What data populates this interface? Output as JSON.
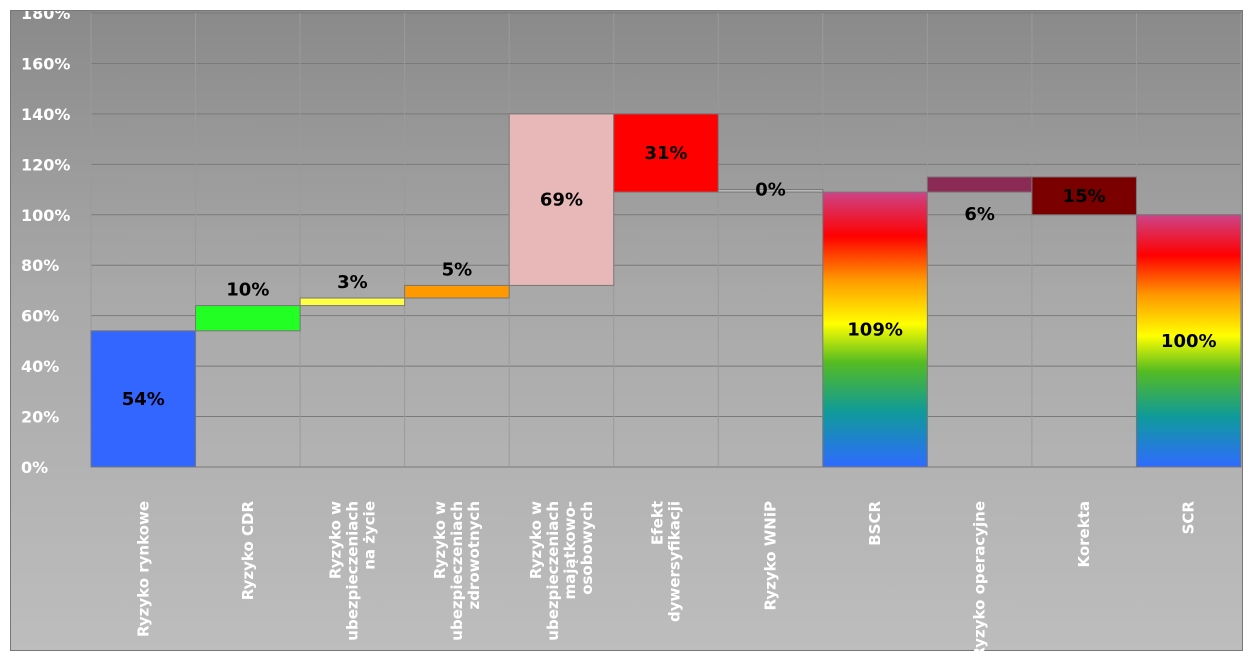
{
  "chart_data": {
    "type": "bar",
    "subtype": "waterfall",
    "title": "",
    "xlabel": "",
    "ylabel": "",
    "ylim": [
      0,
      180
    ],
    "y_ticks": [
      "0%",
      "20%",
      "40%",
      "60%",
      "80%",
      "100%",
      "120%",
      "140%",
      "160%",
      "180%"
    ],
    "grid": true,
    "legend": "none",
    "categories": [
      [
        "Ryzyko rynkowe"
      ],
      [
        "Ryzyko CDR"
      ],
      [
        "Ryzyko w",
        "ubezpieczeniach",
        "na życie"
      ],
      [
        "Ryzyko w",
        "ubezpieczeniach",
        "zdrowotnych"
      ],
      [
        "Ryzyko w",
        "ubezpieczeniach",
        "majątkowo-",
        "osobowych"
      ],
      [
        "Efekt",
        "dywersyfikacji"
      ],
      [
        "Ryzyko WNiP"
      ],
      [
        "BSCR"
      ],
      [
        "Ryzyko operacyjne"
      ],
      [
        "Korekta"
      ],
      [
        "SCR"
      ]
    ],
    "bars": [
      {
        "start": 0,
        "end": 54,
        "label": "54%",
        "color": "#3366ff",
        "fill": "solid"
      },
      {
        "start": 54,
        "end": 64,
        "label": "10%",
        "color": "#22ff22",
        "fill": "solid"
      },
      {
        "start": 64,
        "end": 67,
        "label": "3%",
        "color": "#ffff44",
        "fill": "solid"
      },
      {
        "start": 67,
        "end": 72,
        "label": "5%",
        "color": "#ff9900",
        "fill": "solid"
      },
      {
        "start": 72,
        "end": 140,
        "label": "69%",
        "color": "#e8b8b8",
        "fill": "solid"
      },
      {
        "start": 109,
        "end": 140,
        "label": "31%",
        "color": "#ff0000",
        "fill": "solid"
      },
      {
        "start": 109,
        "end": 110,
        "label": "0%",
        "color": "#bdbdbd",
        "fill": "solid"
      },
      {
        "start": 0,
        "end": 109,
        "label": "109%",
        "color": "rainbow",
        "fill": "gradient"
      },
      {
        "start": 109,
        "end": 115,
        "label": "6%",
        "color": "#8b2a55",
        "fill": "solid"
      },
      {
        "start": 100,
        "end": 115,
        "label": "15%",
        "color": "#7a0000",
        "fill": "solid"
      },
      {
        "start": 0,
        "end": 100,
        "label": "100%",
        "color": "rainbow",
        "fill": "gradient"
      }
    ]
  }
}
